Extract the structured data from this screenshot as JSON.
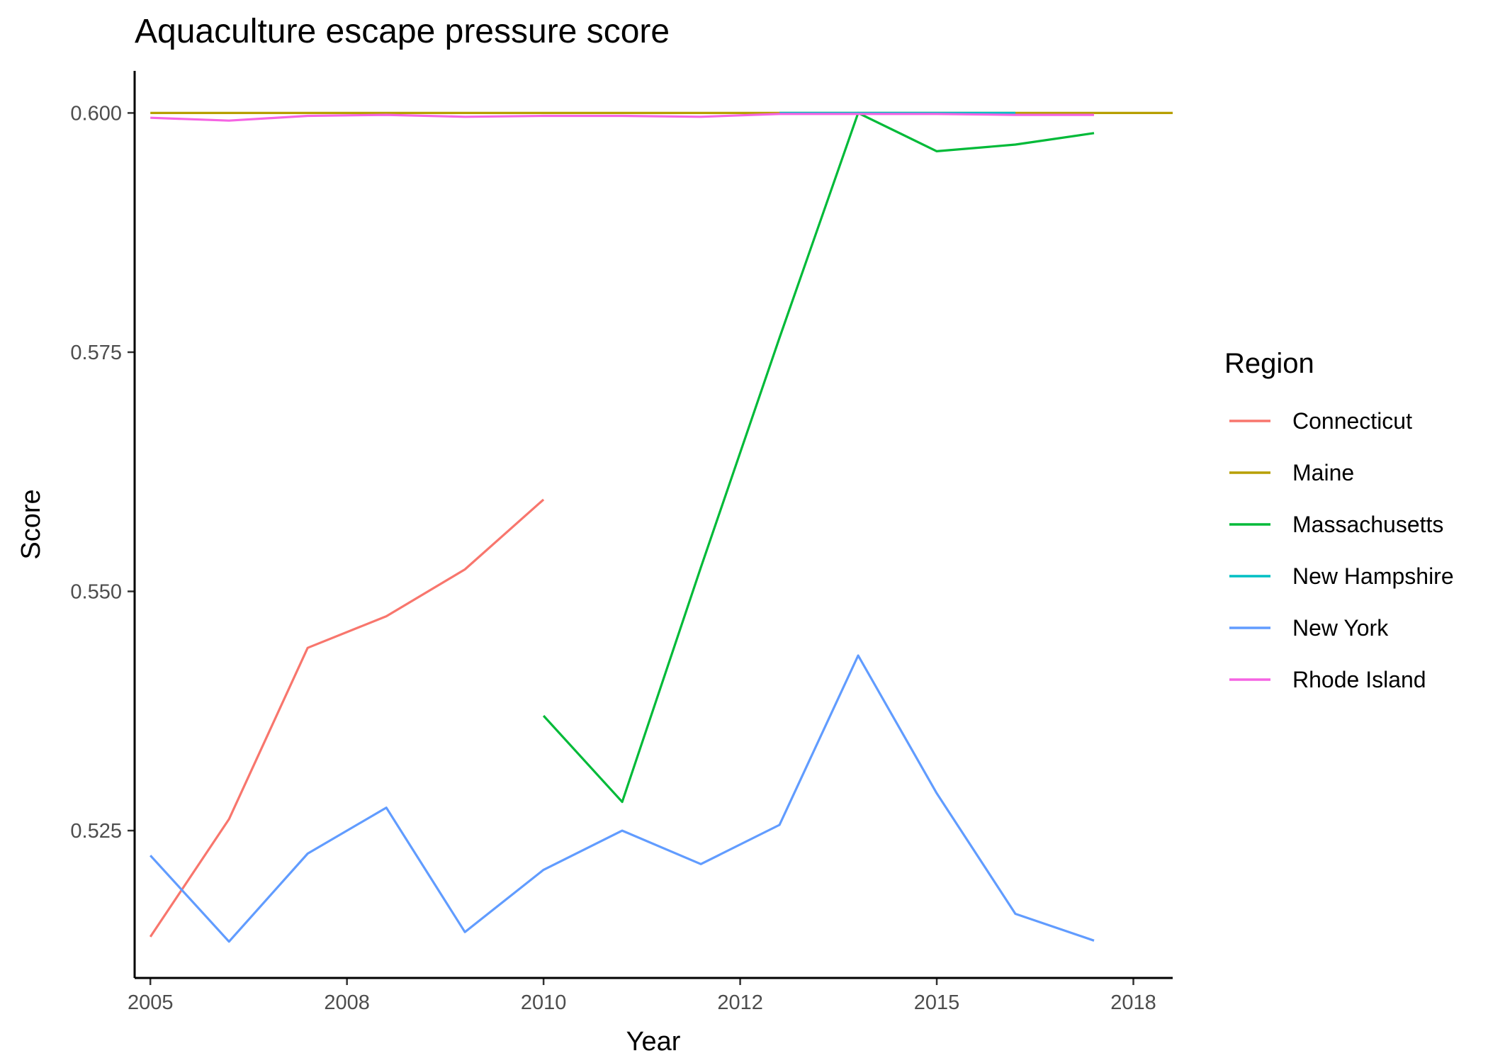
{
  "chart_data": {
    "type": "line",
    "title": "Aquaculture escape pressure score",
    "xlabel": "Year",
    "ylabel": "Score",
    "xlim": [
      2004.8,
      2018.0
    ],
    "ylim": [
      0.5096,
      0.6044
    ],
    "x_ticks": [
      {
        "value": 2005,
        "label": "2005"
      },
      {
        "value": 2007.5,
        "label": "2008"
      },
      {
        "value": 2010,
        "label": "2010"
      },
      {
        "value": 2012.5,
        "label": "2012"
      },
      {
        "value": 2015,
        "label": "2015"
      },
      {
        "value": 2017.5,
        "label": "2018"
      }
    ],
    "y_ticks": [
      {
        "value": 0.525,
        "label": "0.525"
      },
      {
        "value": 0.55,
        "label": "0.550"
      },
      {
        "value": 0.575,
        "label": "0.575"
      },
      {
        "value": 0.6,
        "label": "0.600"
      }
    ],
    "grid": false,
    "legend": {
      "title": "Region",
      "position": "right"
    },
    "series": [
      {
        "name": "Connecticut",
        "color": "#F8766D",
        "x": [
          2005,
          2006,
          2007,
          2008,
          2009,
          2010
        ],
        "y": [
          0.5139,
          0.5262,
          0.5441,
          0.5474,
          0.5523,
          0.5596
        ]
      },
      {
        "name": "Maine",
        "color": "#B79F00",
        "x": [
          2005,
          2006,
          2007,
          2008,
          2009,
          2010,
          2011,
          2012,
          2013,
          2014,
          2015,
          2016,
          2017,
          2018
        ],
        "y": [
          0.6,
          0.6,
          0.6,
          0.6,
          0.6,
          0.6,
          0.6,
          0.6,
          0.6,
          0.6,
          0.6,
          0.6,
          0.6,
          0.6
        ]
      },
      {
        "name": "Massachusetts",
        "color": "#00BA38",
        "x": [
          2010,
          2011,
          2012,
          2013,
          2014,
          2015,
          2016,
          2017
        ],
        "y": [
          0.537,
          0.528,
          0.5525,
          0.5765,
          0.6,
          0.596,
          0.5967,
          0.5979
        ]
      },
      {
        "name": "New Hampshire",
        "color": "#00BFC4",
        "x": [
          2013,
          2014,
          2015,
          2016
        ],
        "y": [
          0.6,
          0.6,
          0.6,
          0.6
        ]
      },
      {
        "name": "New York",
        "color": "#619CFF",
        "x": [
          2005,
          2006,
          2007,
          2008,
          2009,
          2010,
          2011,
          2012,
          2013,
          2014,
          2015,
          2016,
          2017
        ],
        "y": [
          0.5224,
          0.5134,
          0.5226,
          0.5274,
          0.5144,
          0.5209,
          0.525,
          0.5215,
          0.5256,
          0.5433,
          0.5289,
          0.5163,
          0.5135
        ]
      },
      {
        "name": "Rhode Island",
        "color": "#F564E3",
        "x": [
          2005,
          2006,
          2007,
          2008,
          2009,
          2010,
          2011,
          2012,
          2013,
          2014,
          2015,
          2016,
          2017
        ],
        "y": [
          0.5995,
          0.5992,
          0.5997,
          0.5998,
          0.5996,
          0.5997,
          0.5997,
          0.5996,
          0.5999,
          0.5999,
          0.5999,
          0.5998,
          0.5998
        ]
      }
    ]
  }
}
